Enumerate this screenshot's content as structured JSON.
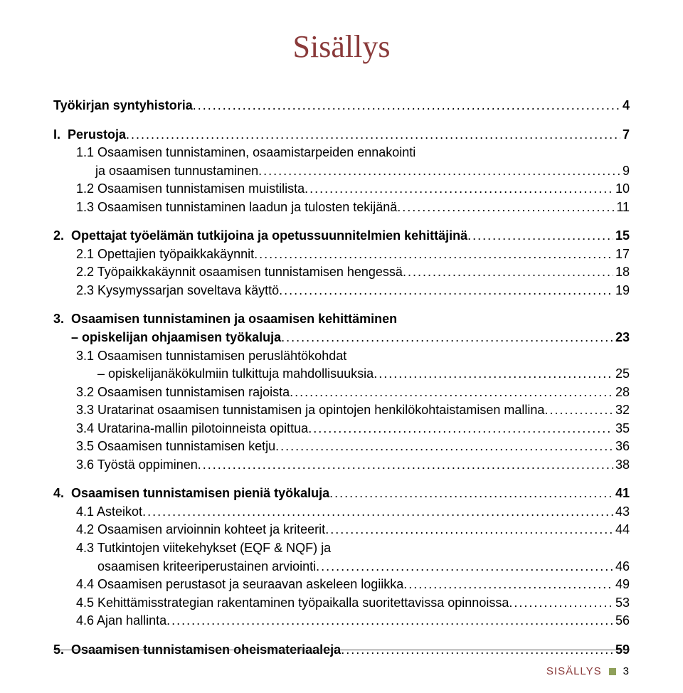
{
  "title": "Sisällys",
  "title_color": "#8a3a3a",
  "footer_label": "SISÄLLYS",
  "footer_color": "#8a3a3a",
  "footer_square_color": "#8fa05a",
  "page_number": "3",
  "entries": [
    {
      "id": "e0",
      "label": "Työkirjan syntyhistoria",
      "page": "4",
      "bold": true,
      "indent": 0
    },
    {
      "id": "gap0",
      "gap": true
    },
    {
      "id": "e1",
      "label": "I.  Perustoja",
      "page": "7",
      "bold": true,
      "indent": 0
    },
    {
      "id": "e2a",
      "label": "1.1 Osaamisen tunnistaminen, osaamistarpeiden ennakointi",
      "indent": 1,
      "cont": true
    },
    {
      "id": "e2b",
      "label": "ja osaamisen tunnustaminen",
      "page": "9",
      "indent": "1b"
    },
    {
      "id": "e3",
      "label": "1.2 Osaamisen tunnistamisen muistilista",
      "page": "10",
      "indent": 1
    },
    {
      "id": "e4",
      "label": "1.3 Osaamisen tunnistaminen laadun ja tulosten tekijänä",
      "page": "11",
      "indent": 1
    },
    {
      "id": "gap1",
      "gap": true
    },
    {
      "id": "e5",
      "label": "2.  Opettajat työelämän tutkijoina ja opetussuunnitelmien kehittäjinä",
      "page": "15",
      "bold": true,
      "indent": 0
    },
    {
      "id": "e6",
      "label": "2.1 Opettajien työpaikkakäynnit",
      "page": "17",
      "indent": 1
    },
    {
      "id": "e7",
      "label": "2.2 Työpaikkakäynnit osaamisen tunnistamisen hengessä",
      "page": "18",
      "indent": 1
    },
    {
      "id": "e8",
      "label": "2.3 Kysymyssarjan soveltava käyttö",
      "page": "19",
      "indent": 1
    },
    {
      "id": "gap2",
      "gap": true
    },
    {
      "id": "e9a",
      "label": "3.  Osaamisen tunnistaminen ja osaamisen kehittäminen",
      "bold": true,
      "indent": 0,
      "cont": true
    },
    {
      "id": "e9b",
      "label": "     – opiskelijan ohjaamisen työkaluja",
      "page": "23",
      "bold": true,
      "indent": 0
    },
    {
      "id": "e10a",
      "label": "3.1 Osaamisen tunnistamisen peruslähtökohdat",
      "indent": 1,
      "cont": true
    },
    {
      "id": "e10b",
      "label": "– opiskelijanäkökulmiin tulkittuja mahdollisuuksia",
      "page": "25",
      "indent": 2
    },
    {
      "id": "e11",
      "label": "3.2 Osaamisen tunnistamisen rajoista",
      "page": "28",
      "indent": 1
    },
    {
      "id": "e12",
      "label": "3.3 Uratarinat osaamisen tunnistamisen ja opintojen henkilökohtaistamisen mallina",
      "page": "32",
      "indent": 1
    },
    {
      "id": "e13",
      "label": "3.4 Uratarina-mallin pilotoinneista opittua",
      "page": "35",
      "indent": 1
    },
    {
      "id": "e14",
      "label": "3.5 Osaamisen tunnistamisen ketju",
      "page": "36",
      "indent": 1
    },
    {
      "id": "e15",
      "label": "3.6 Työstä oppiminen",
      "page": "38",
      "indent": 1
    },
    {
      "id": "gap3",
      "gap": true
    },
    {
      "id": "e16",
      "label": "4.  Osaamisen tunnistamisen pieniä työkaluja",
      "page": "41",
      "bold": true,
      "indent": 0
    },
    {
      "id": "e17",
      "label": "4.1 Asteikot",
      "page": "43",
      "indent": 1
    },
    {
      "id": "e18",
      "label": "4.2 Osaamisen arvioinnin kohteet ja kriteerit",
      "page": "44",
      "indent": 1
    },
    {
      "id": "e19a",
      "label": "4.3 Tutkintojen viitekehykset (EQF & NQF) ja",
      "indent": 1,
      "cont": true
    },
    {
      "id": "e19b",
      "label": "osaamisen kriteeriperustainen arviointi",
      "page": "46",
      "indent": 2
    },
    {
      "id": "e20",
      "label": "4.4 Osaamisen perustasot ja seuraavan askeleen logiikka",
      "page": "49",
      "indent": 1
    },
    {
      "id": "e21",
      "label": "4.5 Kehittämisstrategian rakentaminen työpaikalla suoritettavissa opinnoissa",
      "page": "53",
      "indent": 1
    },
    {
      "id": "e22",
      "label": "4.6 Ajan hallinta",
      "page": "56",
      "indent": 1
    },
    {
      "id": "gap4",
      "gap": true
    },
    {
      "id": "e23",
      "label": "5.  Osaamisen tunnistamisen oheismateriaaleja",
      "page": "59",
      "bold": true,
      "indent": 0
    }
  ]
}
